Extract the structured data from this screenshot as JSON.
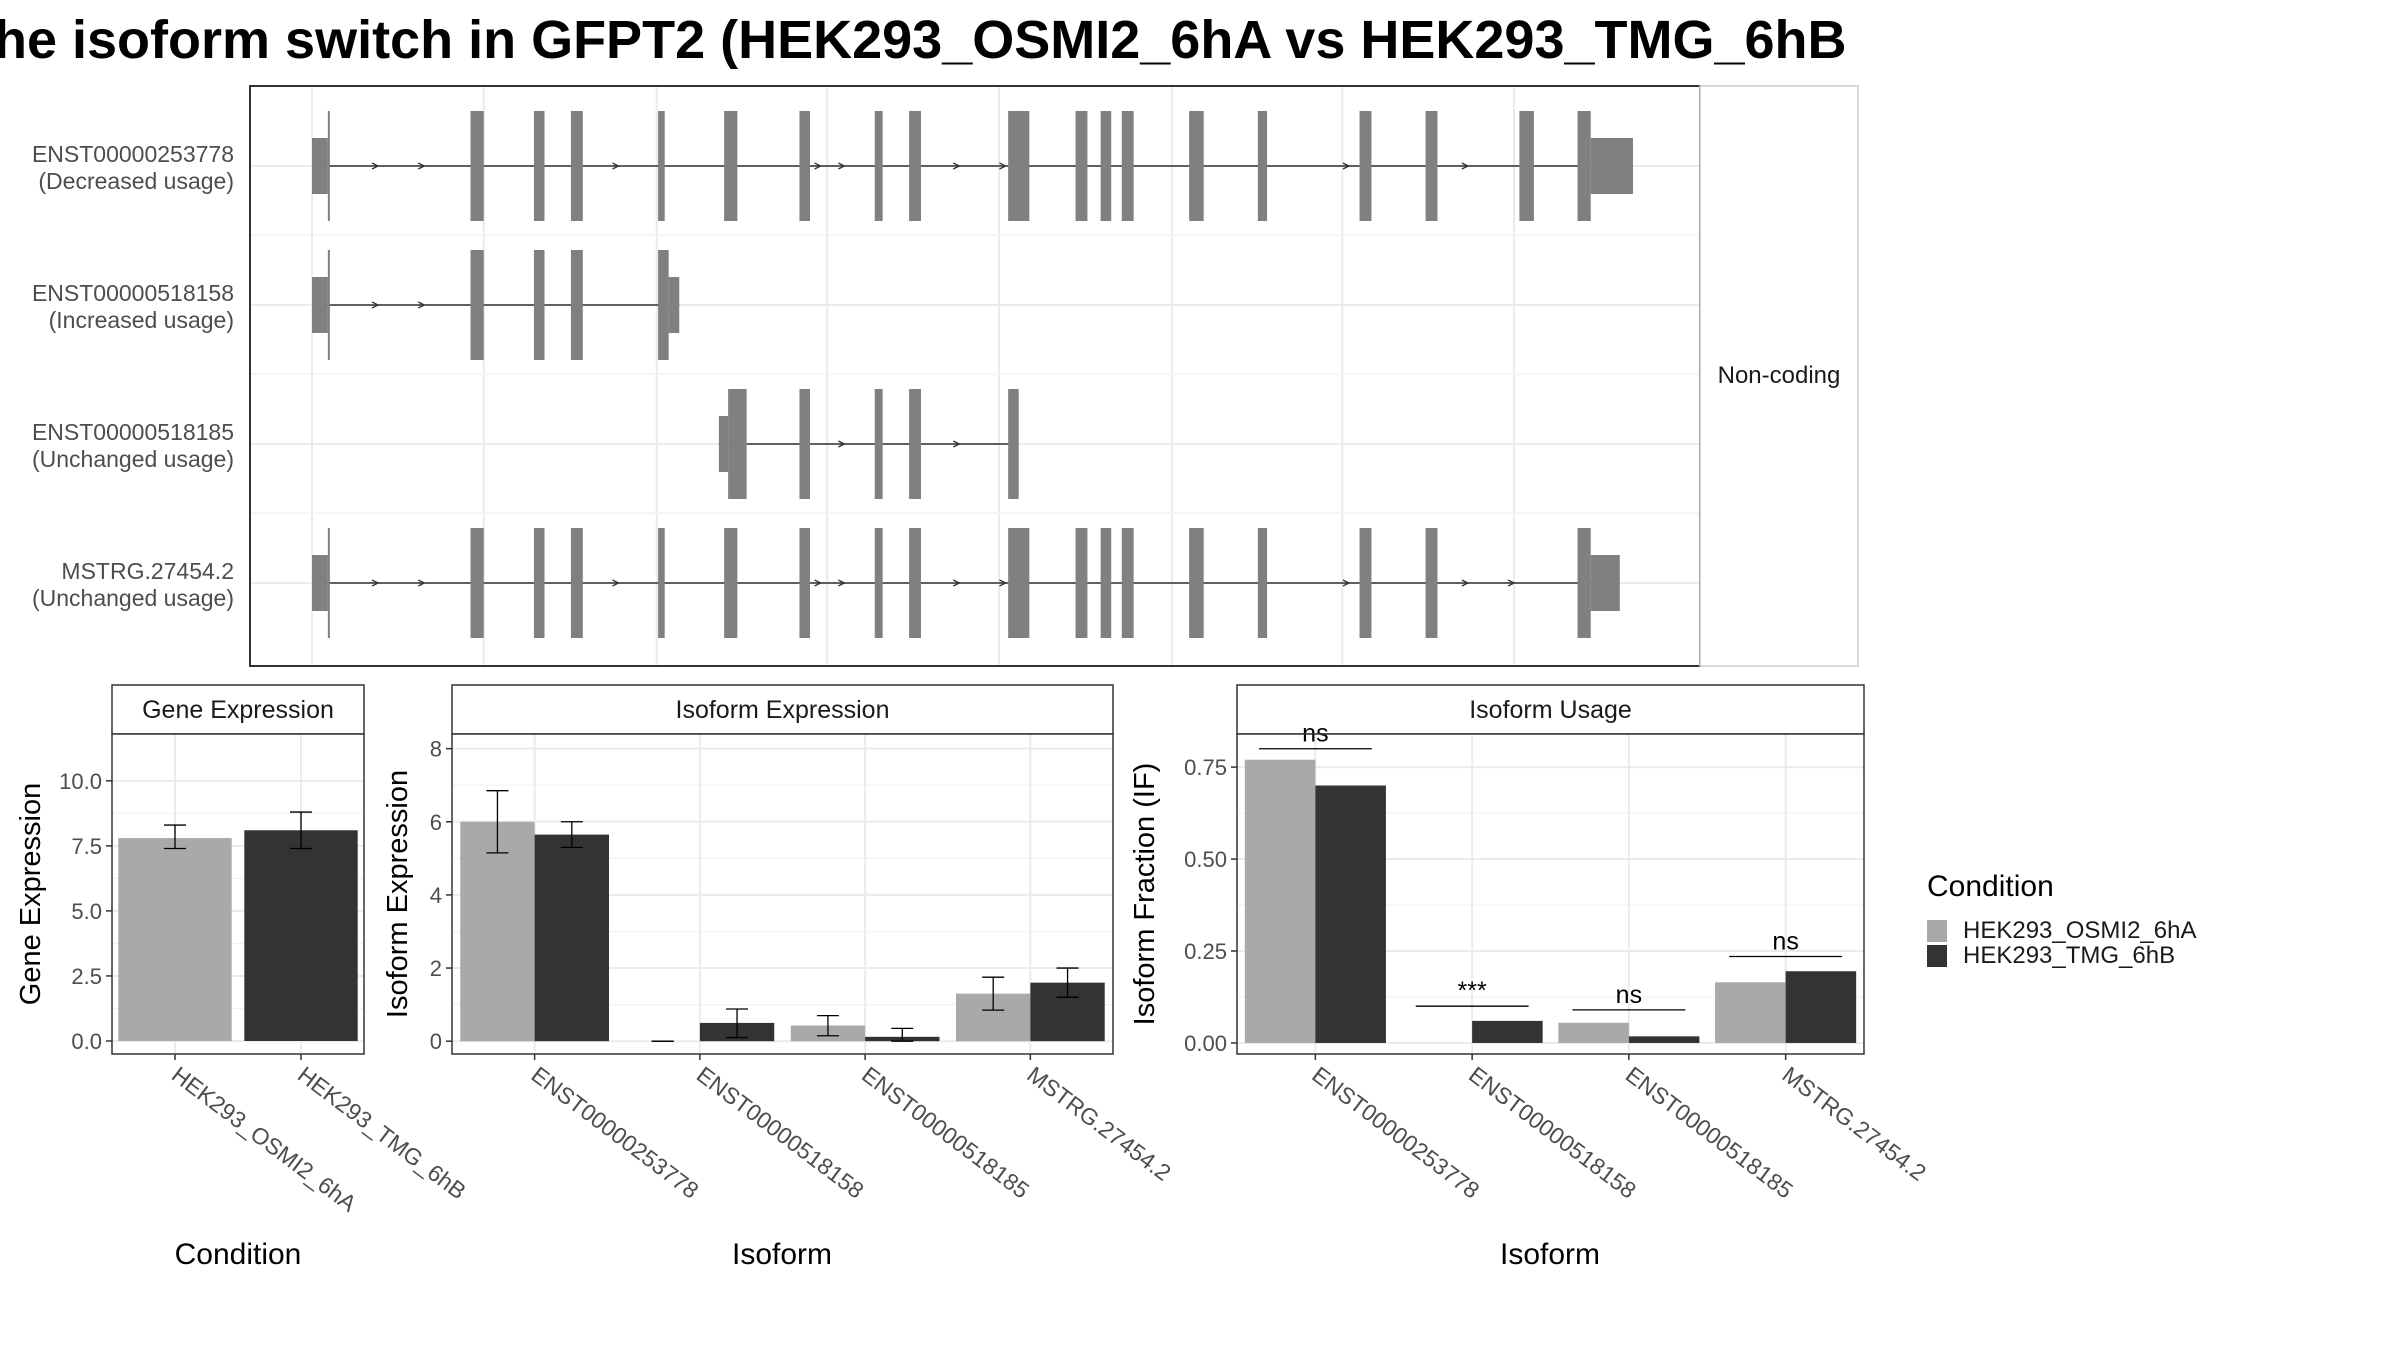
{
  "title": "he isoform switch in GFPT2 (HEK293_OSMI2_6hA vs HEK293_TMG_6hB",
  "colors": {
    "exon": "#808080",
    "condA": "#a9a9a9",
    "condB": "#333333",
    "grid": "#ebebeb",
    "panel_border": "#333333",
    "strip_bg": "#ffffff"
  },
  "structure": {
    "strip_label": "Non-coding",
    "isoforms": [
      {
        "id": "ENST00000253778",
        "usage": "(Decreased usage)",
        "exons": [
          [
            0.0,
            0.012,
            "utr"
          ],
          [
            0.012,
            0.013,
            "cds"
          ],
          [
            0.12,
            0.13,
            "cds"
          ],
          [
            0.168,
            0.176,
            "cds"
          ],
          [
            0.196,
            0.205,
            "cds"
          ],
          [
            0.262,
            0.267,
            "cds"
          ],
          [
            0.312,
            0.322,
            "cds"
          ],
          [
            0.369,
            0.377,
            "cds"
          ],
          [
            0.426,
            0.432,
            "cds"
          ],
          [
            0.452,
            0.461,
            "cds"
          ],
          [
            0.527,
            0.543,
            "cds"
          ],
          [
            0.578,
            0.587,
            "cds"
          ],
          [
            0.597,
            0.605,
            "cds"
          ],
          [
            0.613,
            0.622,
            "cds"
          ],
          [
            0.664,
            0.675,
            "cds"
          ],
          [
            0.716,
            0.723,
            "cds"
          ],
          [
            0.793,
            0.802,
            "cds"
          ],
          [
            0.843,
            0.852,
            "cds"
          ],
          [
            0.914,
            0.925,
            "cds"
          ],
          [
            0.958,
            0.968,
            "cds"
          ],
          [
            0.968,
            1.0,
            "utr"
          ]
        ],
        "arrows": [
          0.05,
          0.085,
          0.232,
          0.385,
          0.403,
          0.49,
          0.525,
          0.785,
          0.875
        ]
      },
      {
        "id": "ENST00000518158",
        "usage": "(Increased usage)",
        "exons": [
          [
            0.0,
            0.012,
            "utr"
          ],
          [
            0.012,
            0.013,
            "cds"
          ],
          [
            0.12,
            0.13,
            "cds"
          ],
          [
            0.168,
            0.176,
            "cds"
          ],
          [
            0.196,
            0.205,
            "cds"
          ],
          [
            0.262,
            0.27,
            "cds"
          ],
          [
            0.27,
            0.278,
            "utr"
          ]
        ],
        "arrows": [
          0.05,
          0.085
        ]
      },
      {
        "id": "ENST00000518185",
        "usage": "(Unchanged usage)",
        "exons": [
          [
            0.308,
            0.315,
            "utr"
          ],
          [
            0.315,
            0.329,
            "cds"
          ],
          [
            0.369,
            0.377,
            "cds"
          ],
          [
            0.426,
            0.432,
            "cds"
          ],
          [
            0.452,
            0.461,
            "cds"
          ],
          [
            0.527,
            0.535,
            "cds"
          ]
        ],
        "arrows": [
          0.403,
          0.49
        ]
      },
      {
        "id": "MSTRG.27454.2",
        "usage": "(Unchanged usage)",
        "exons": [
          [
            0.0,
            0.012,
            "utr"
          ],
          [
            0.012,
            0.013,
            "cds"
          ],
          [
            0.12,
            0.13,
            "cds"
          ],
          [
            0.168,
            0.176,
            "cds"
          ],
          [
            0.196,
            0.205,
            "cds"
          ],
          [
            0.262,
            0.267,
            "cds"
          ],
          [
            0.312,
            0.322,
            "cds"
          ],
          [
            0.369,
            0.377,
            "cds"
          ],
          [
            0.426,
            0.432,
            "cds"
          ],
          [
            0.452,
            0.461,
            "cds"
          ],
          [
            0.527,
            0.543,
            "cds"
          ],
          [
            0.578,
            0.587,
            "cds"
          ],
          [
            0.597,
            0.605,
            "cds"
          ],
          [
            0.613,
            0.622,
            "cds"
          ],
          [
            0.664,
            0.675,
            "cds"
          ],
          [
            0.716,
            0.723,
            "cds"
          ],
          [
            0.793,
            0.802,
            "cds"
          ],
          [
            0.843,
            0.852,
            "cds"
          ],
          [
            0.958,
            0.968,
            "cds"
          ],
          [
            0.968,
            0.99,
            "utr"
          ]
        ],
        "arrows": [
          0.05,
          0.085,
          0.232,
          0.385,
          0.403,
          0.49,
          0.525,
          0.785,
          0.875,
          0.91
        ]
      }
    ]
  },
  "legend": {
    "title": "Condition",
    "items": [
      "HEK293_OSMI2_6hA",
      "HEK293_TMG_6hB"
    ]
  },
  "chart_data": [
    {
      "type": "bar",
      "title": "Gene Expression",
      "xlabel": "Condition",
      "ylabel": "Gene Expression",
      "ylim": [
        -0.5,
        11.8
      ],
      "yticks": [
        0,
        2.5,
        5,
        7.5,
        10
      ],
      "ytick_labels": [
        "0.0",
        "2.5",
        "5.0",
        "7.5",
        "10.0"
      ],
      "categories": [
        "HEK293_OSMI2_6hA",
        "HEK293_TMG_6hB"
      ],
      "series": [
        {
          "name": "HEK293_OSMI2_6hA",
          "values": [
            7.8,
            null
          ],
          "err_low": [
            7.4,
            null
          ],
          "err_high": [
            8.3,
            null
          ]
        },
        {
          "name": "HEK293_TMG_6hB",
          "values": [
            null,
            8.1
          ],
          "err_low": [
            null,
            7.4
          ],
          "err_high": [
            null,
            8.8
          ]
        }
      ]
    },
    {
      "type": "bar",
      "title": "Isoform Expression",
      "xlabel": "Isoform",
      "ylabel": "Isoform Expression",
      "ylim": [
        -0.35,
        8.4
      ],
      "yticks": [
        0,
        2,
        4,
        6,
        8
      ],
      "ytick_labels": [
        "0",
        "2",
        "4",
        "6",
        "8"
      ],
      "categories": [
        "ENST00000253778",
        "ENST00000518158",
        "ENST00000518185",
        "MSTRG.27454.2"
      ],
      "series": [
        {
          "name": "HEK293_OSMI2_6hA",
          "values": [
            6.0,
            0.0,
            0.43,
            1.3
          ],
          "err_low": [
            5.15,
            0.0,
            0.15,
            0.85
          ],
          "err_high": [
            6.85,
            0.0,
            0.7,
            1.75
          ]
        },
        {
          "name": "HEK293_TMG_6hB",
          "values": [
            5.65,
            0.5,
            0.12,
            1.6
          ],
          "err_low": [
            5.3,
            0.1,
            0.0,
            1.2
          ],
          "err_high": [
            6.0,
            0.88,
            0.35,
            2.0
          ]
        }
      ]
    },
    {
      "type": "bar",
      "title": "Isoform Usage",
      "xlabel": "Isoform",
      "ylabel": "Isoform Fraction (IF)",
      "ylim": [
        -0.03,
        0.84
      ],
      "yticks": [
        0,
        0.25,
        0.5,
        0.75
      ],
      "ytick_labels": [
        "0.00",
        "0.25",
        "0.50",
        "0.75"
      ],
      "categories": [
        "ENST00000253778",
        "ENST00000518158",
        "ENST00000518185",
        "MSTRG.27454.2"
      ],
      "series": [
        {
          "name": "HEK293_OSMI2_6hA",
          "values": [
            0.77,
            0.0,
            0.055,
            0.165
          ]
        },
        {
          "name": "HEK293_TMG_6hB",
          "values": [
            0.7,
            0.06,
            0.018,
            0.195
          ]
        }
      ],
      "significance": [
        {
          "label": "ns",
          "y": 0.8
        },
        {
          "label": "***",
          "y": 0.1
        },
        {
          "label": "ns",
          "y": 0.09
        },
        {
          "label": "ns",
          "y": 0.235
        }
      ]
    }
  ]
}
